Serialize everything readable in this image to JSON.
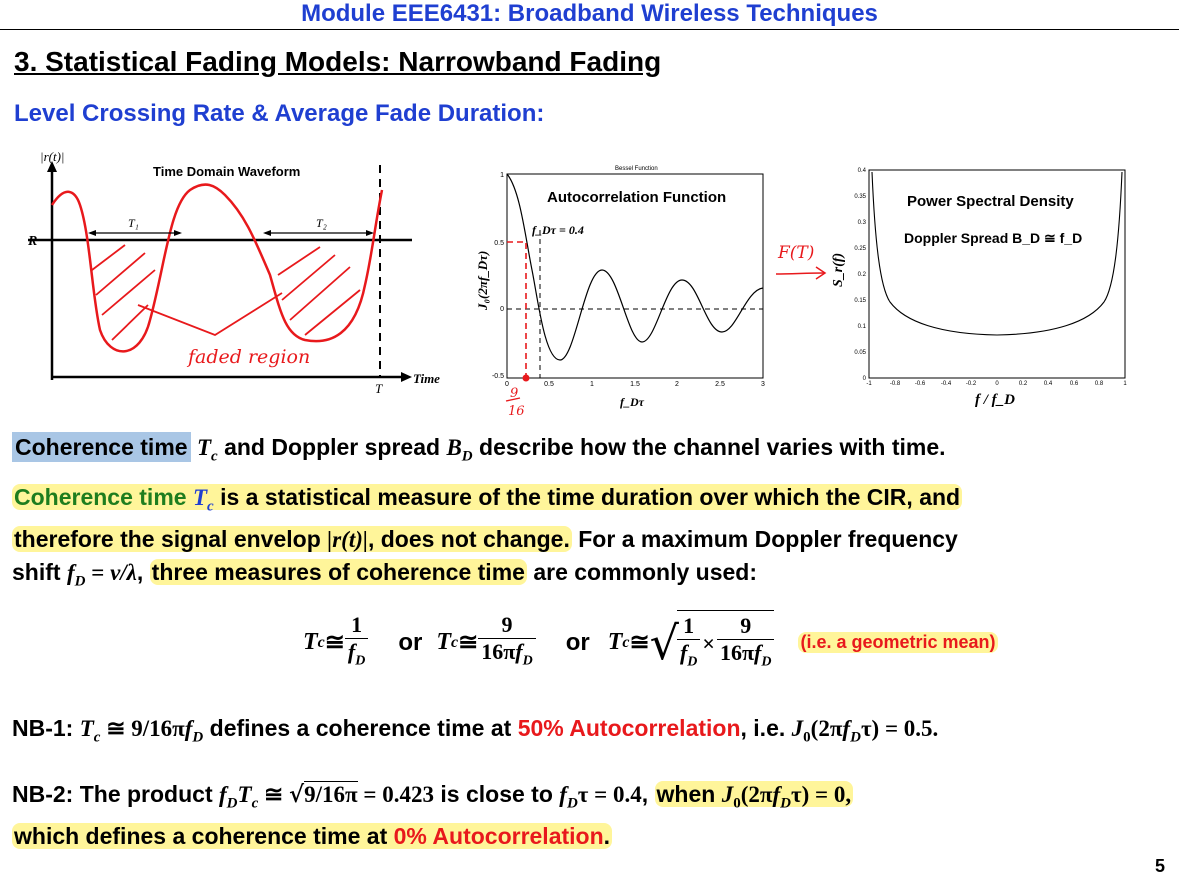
{
  "header": "Module EEE6431: Broadband Wireless Techniques",
  "title": "3. Statistical Fading Models: Narrowband Fading",
  "subtitle": "Level Crossing Rate & Average Fade Duration:",
  "figure1": {
    "title": "Time Domain Waveform",
    "y_label": "|r(t)|",
    "level_label": "R",
    "interval_1": "T₁",
    "interval_2": "T₂",
    "time_mark": "T",
    "x_label": "Time",
    "annotation": "faded region"
  },
  "figure2": {
    "small_title": "Bessel Function",
    "title": "Autocorrelation Function",
    "y_label": "J₀(2πf_Dτ)",
    "x_label": "f_Dτ",
    "marker_label": "f_Dτ = 0.4",
    "handwritten_fraction_num": "9",
    "handwritten_fraction_den": "16",
    "arrow_text": "F(T)",
    "x_ticks": [
      "0",
      "0.5",
      "1",
      "1.5",
      "2",
      "2.5",
      "3"
    ],
    "y_ticks": [
      "1",
      "0.5",
      "0",
      "-0.5"
    ]
  },
  "figure3": {
    "title": "Power Spectral Density",
    "subtitle": "Doppler Spread B_D ≅ f_D",
    "y_label": "S_r(f)",
    "x_label": "f / f_D",
    "x_ticks": [
      "-1",
      "-0.8",
      "-0.6",
      "-0.4",
      "-0.2",
      "0",
      "0.2",
      "0.4",
      "0.6",
      "0.8",
      "1"
    ],
    "y_ticks": [
      "0.4",
      "0.35",
      "0.3",
      "0.25",
      "0.2",
      "0.15",
      "0.1",
      "0.05",
      "0"
    ]
  },
  "chart_data": [
    {
      "type": "line",
      "title": "Autocorrelation Function",
      "xlabel": "f_Dτ",
      "ylabel": "J₀(2πf_Dτ)",
      "x": [
        0,
        0.25,
        0.38,
        0.5,
        0.61,
        0.75,
        1.0,
        1.12,
        1.25,
        1.5,
        1.62,
        1.75,
        2.0,
        2.12,
        2.25,
        2.5,
        2.62,
        2.75,
        3.0
      ],
      "values": [
        1.0,
        0.47,
        0.0,
        -0.3,
        -0.4,
        -0.32,
        0.22,
        0.3,
        0.25,
        -0.15,
        -0.24,
        -0.18,
        0.15,
        0.21,
        0.16,
        -0.1,
        -0.16,
        -0.12,
        0.1
      ],
      "xlim": [
        0,
        3
      ],
      "ylim": [
        -0.5,
        1
      ]
    },
    {
      "type": "line",
      "title": "Power Spectral Density",
      "xlabel": "f / f_D",
      "ylabel": "S_r(f)",
      "x": [
        -0.98,
        -0.9,
        -0.8,
        -0.6,
        -0.4,
        -0.2,
        0,
        0.2,
        0.4,
        0.6,
        0.8,
        0.9,
        0.98
      ],
      "values": [
        0.4,
        0.185,
        0.133,
        0.1,
        0.087,
        0.081,
        0.08,
        0.081,
        0.087,
        0.1,
        0.133,
        0.185,
        0.4
      ],
      "xlim": [
        -1,
        1
      ],
      "ylim": [
        0,
        0.4
      ]
    }
  ],
  "para1": {
    "a": "Coherence time",
    "b": "T",
    "c": "c",
    "d": " and Doppler spread ",
    "e": "B",
    "f": "D",
    "g": " describe how the channel varies with time."
  },
  "para2": {
    "line1_a": "Coherence time ",
    "line1_b": "T",
    "line1_c": "c",
    "line1_d": " is a statistical measure of the time duration over which the CIR, and",
    "line2_a": "therefore the signal envelop ",
    "line2_b": "|r(t)|",
    "line2_c": ", does not change.",
    "line2_d": " For a maximum Doppler frequency",
    "line3_a": "shift ",
    "line3_b": "f",
    "line3_c": "D",
    "line3_d": " = ",
    "line3_e": "v/λ",
    "line3_f": ", ",
    "line3_g": "three measures of coherence time",
    "line3_h": " are commonly used:"
  },
  "equations": {
    "tc": "T",
    "c": "c",
    "approx": " ≅ ",
    "or": "or",
    "one": "1",
    "nine": "9",
    "fd_f": "f",
    "fd_d": "D",
    "sixteen_pi": "16π",
    "times": "×",
    "note": "(i.e. a geometric mean)"
  },
  "nb1": {
    "label": "NB-1: ",
    "expr": "T",
    "sub": "c",
    "expr2": " ≅ 9/16π",
    "f": "f",
    "d": "D",
    "text1": " defines a coherence time at ",
    "red": "50% Autocorrelation",
    "text2": ", i.e. ",
    "expr3": "J",
    "sub3": "0",
    "expr4": "(2π",
    "expr5": "τ) = 0.5."
  },
  "nb2": {
    "label": "NB-2: The product ",
    "f": "f",
    "d": "D",
    "t": "T",
    "c": "c",
    "approx": " ≅ ",
    "sqrt": "9/16π",
    "eq1": " = 0.423",
    "text1": " is close to ",
    "tau": "τ = 0.4",
    "comma": ", ",
    "when": "when ",
    "j": "J",
    "zero": "0",
    "jexpr": "(2π",
    "jend": "τ) = 0,",
    "line2a": "which defines a coherence time at ",
    "line2red": "0% Autocorrelation",
    "line2b": "."
  },
  "page_number": "5"
}
